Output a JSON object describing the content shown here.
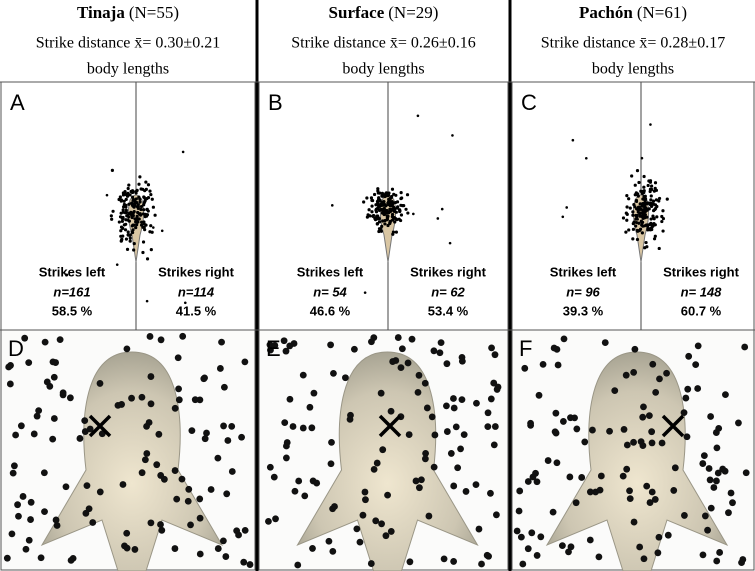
{
  "panels": [
    {
      "name": "Tinaja",
      "count": "(N=55)",
      "distance": "Strike distance x̄= 0.30±0.21",
      "units": "body lengths",
      "letter_top": "A",
      "letter_bottom": "D",
      "left": {
        "label": "Strikes left",
        "n": "n=161",
        "percent": "58.5 %"
      },
      "right": {
        "label": "Strikes right",
        "n": "n=114",
        "percent": "41.5 %"
      }
    },
    {
      "name": "Surface",
      "count": "(N=29)",
      "distance": "Strike distance x̄= 0.26±0.16",
      "units": "body lengths",
      "letter_top": "B",
      "letter_bottom": "E",
      "left": {
        "label": "Strikes left",
        "n": "n= 54",
        "percent": "46.6 %"
      },
      "right": {
        "label": "Strikes right",
        "n": "n= 62",
        "percent": "53.4 %"
      }
    },
    {
      "name": "Pachón",
      "count": "(N=61)",
      "distance": "Strike distance x̄= 0.28±0.17",
      "units": "body lengths",
      "letter_top": "C",
      "letter_bottom": "F",
      "left": {
        "label": "Strikes left",
        "n": "n= 96",
        "percent": "39.3 %"
      },
      "right": {
        "label": "Strikes right",
        "n": "n= 148",
        "percent": "60.7 %"
      }
    }
  ]
}
